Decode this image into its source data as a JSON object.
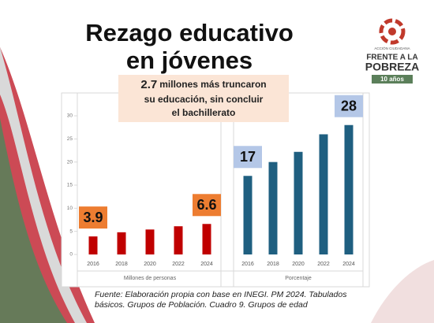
{
  "header": {
    "title_lines": [
      "Rezago educativo",
      "en jóvenes"
    ]
  },
  "callout": {
    "highlight": "2.7",
    "text_lines": [
      "millones más truncaron",
      "su educación, sin concluir",
      "el bachillerato"
    ]
  },
  "logo": {
    "lines": [
      "ACCIÓN CIUDADANA",
      "FRENTE A LA",
      "POBREZA"
    ],
    "badge": "10 años"
  },
  "source": {
    "lines": [
      "Fuente: Elaboración propia con base en INEGI. PM 2024. Tabulados",
      "básicos. Grupos de Población. Cuadro 9. Grupos de edad"
    ]
  },
  "chart_data": {
    "type": "bar",
    "ylim": [
      0,
      30
    ],
    "yticks": [
      0,
      5,
      10,
      15,
      20,
      25,
      30
    ],
    "panels": [
      {
        "xlabel": "Millones de personas",
        "categories": [
          "2016",
          "2018",
          "2020",
          "2022",
          "2024"
        ],
        "values": [
          3.9,
          4.8,
          5.4,
          6.1,
          6.6
        ],
        "value_labels": [
          "3.9",
          null,
          null,
          null,
          "6.6"
        ],
        "color": "#c00000",
        "label_color": "#ed7d31"
      },
      {
        "xlabel": "Porcentaje",
        "categories": [
          "2016",
          "2018",
          "2020",
          "2022",
          "2024"
        ],
        "values": [
          17,
          20,
          22.2,
          26,
          28
        ],
        "value_labels": [
          "17",
          null,
          null,
          null,
          "28"
        ],
        "color": "#1f5f80",
        "label_color": "#b4c7e7"
      }
    ]
  }
}
